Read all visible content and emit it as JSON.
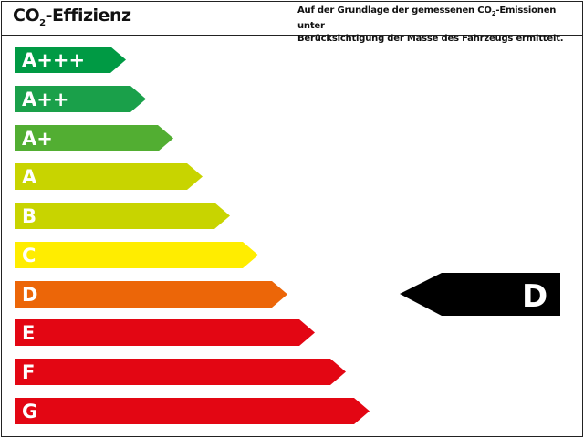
{
  "header": {
    "title_prefix": "CO",
    "title_sub": "2",
    "title_suffix": "-Effizienz",
    "note_line1_prefix": "Auf der Grundlage der gemessenen CO",
    "note_line1_sub": "2",
    "note_line1_suffix": "-Emissionen unter",
    "note_line2": "Berücksichtigung der Masse des Fahrzeugs ermittelt."
  },
  "classes": [
    {
      "label": "A+++",
      "color": "#009a44"
    },
    {
      "label": "A++",
      "color": "#1aa04a"
    },
    {
      "label": "A+",
      "color": "#52ae32"
    },
    {
      "label": "A",
      "color": "#c8d400"
    },
    {
      "label": "B",
      "color": "#c8d400"
    },
    {
      "label": "C",
      "color": "#ffed00"
    },
    {
      "label": "D",
      "color": "#ec6608"
    },
    {
      "label": "E",
      "color": "#e30613"
    },
    {
      "label": "F",
      "color": "#e30613"
    },
    {
      "label": "G",
      "color": "#e30613"
    }
  ],
  "rating": {
    "label": "D",
    "color": "#000000"
  }
}
